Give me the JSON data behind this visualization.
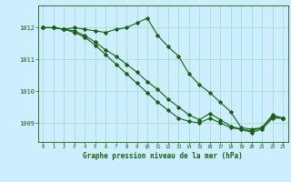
{
  "title": "Graphe pression niveau de la mer (hPa)",
  "background_color": "#cceeff",
  "grid_color": "#aaddcc",
  "line_color": "#1a5c1a",
  "xlim": [
    -0.5,
    23.5
  ],
  "ylim": [
    1008.4,
    1012.7
  ],
  "yticks": [
    1009,
    1010,
    1011,
    1012
  ],
  "xticks": [
    0,
    1,
    2,
    3,
    4,
    5,
    6,
    7,
    8,
    9,
    10,
    11,
    12,
    13,
    14,
    15,
    16,
    17,
    18,
    19,
    20,
    21,
    22,
    23
  ],
  "series1_x": [
    0,
    1,
    2,
    3,
    4,
    5,
    6,
    7,
    8,
    9,
    10,
    11,
    12,
    13,
    14,
    15,
    16,
    17,
    18,
    19,
    20,
    21,
    22,
    23
  ],
  "series1_y": [
    1012.0,
    1012.0,
    1011.95,
    1012.0,
    1011.95,
    1011.9,
    1011.85,
    1011.95,
    1012.0,
    1012.15,
    1012.3,
    1011.75,
    1011.4,
    1011.1,
    1010.55,
    1010.2,
    1009.95,
    1009.65,
    1009.35,
    1008.85,
    1008.8,
    1008.85,
    1009.25,
    1009.15
  ],
  "series2_x": [
    0,
    1,
    2,
    3,
    4,
    5,
    6,
    7,
    8,
    9,
    10,
    11,
    12,
    13,
    14,
    15,
    16,
    17,
    18,
    19,
    20,
    21,
    22,
    23
  ],
  "series2_y": [
    1012.0,
    1012.0,
    1011.95,
    1011.9,
    1011.75,
    1011.55,
    1011.3,
    1011.1,
    1010.85,
    1010.6,
    1010.3,
    1010.05,
    1009.75,
    1009.5,
    1009.25,
    1009.1,
    1009.3,
    1009.1,
    1008.9,
    1008.8,
    1008.75,
    1008.85,
    1009.2,
    1009.15
  ],
  "series3_x": [
    0,
    1,
    2,
    3,
    4,
    5,
    6,
    7,
    8,
    9,
    10,
    11,
    12,
    13,
    14,
    15,
    16,
    17,
    18,
    19,
    20,
    21,
    22,
    23
  ],
  "series3_y": [
    1012.0,
    1012.0,
    1011.95,
    1011.85,
    1011.7,
    1011.45,
    1011.15,
    1010.85,
    1010.55,
    1010.25,
    1009.95,
    1009.65,
    1009.4,
    1009.15,
    1009.05,
    1009.0,
    1009.15,
    1009.0,
    1008.85,
    1008.8,
    1008.7,
    1008.8,
    1009.15,
    1009.15
  ]
}
